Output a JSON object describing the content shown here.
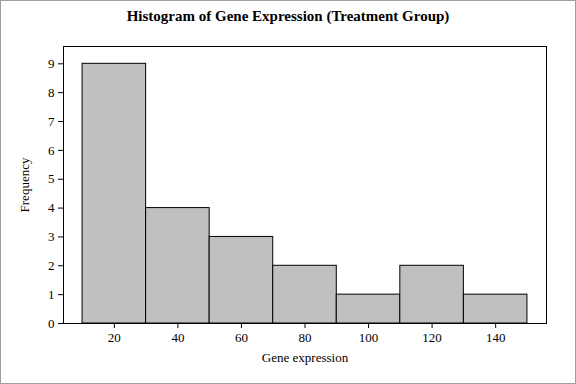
{
  "chart_data": {
    "type": "histogram",
    "title": "Histogram of Gene Expression (Treatment Group)",
    "x_label": "Gene expression",
    "y_label": "Frequency",
    "bins": [
      10,
      30,
      50,
      70,
      90,
      110,
      130,
      150
    ],
    "values": [
      9,
      4,
      3,
      2,
      1,
      2,
      1
    ],
    "color": "#c0c0c0",
    "xlim": [
      4,
      156
    ],
    "xticks": [
      20,
      40,
      60,
      80,
      100,
      120,
      140
    ],
    "ylim": [
      0,
      9.6
    ],
    "yticks": [
      0,
      1,
      2,
      3,
      4,
      5,
      6,
      7,
      8,
      9
    ],
    "grid": false
  }
}
